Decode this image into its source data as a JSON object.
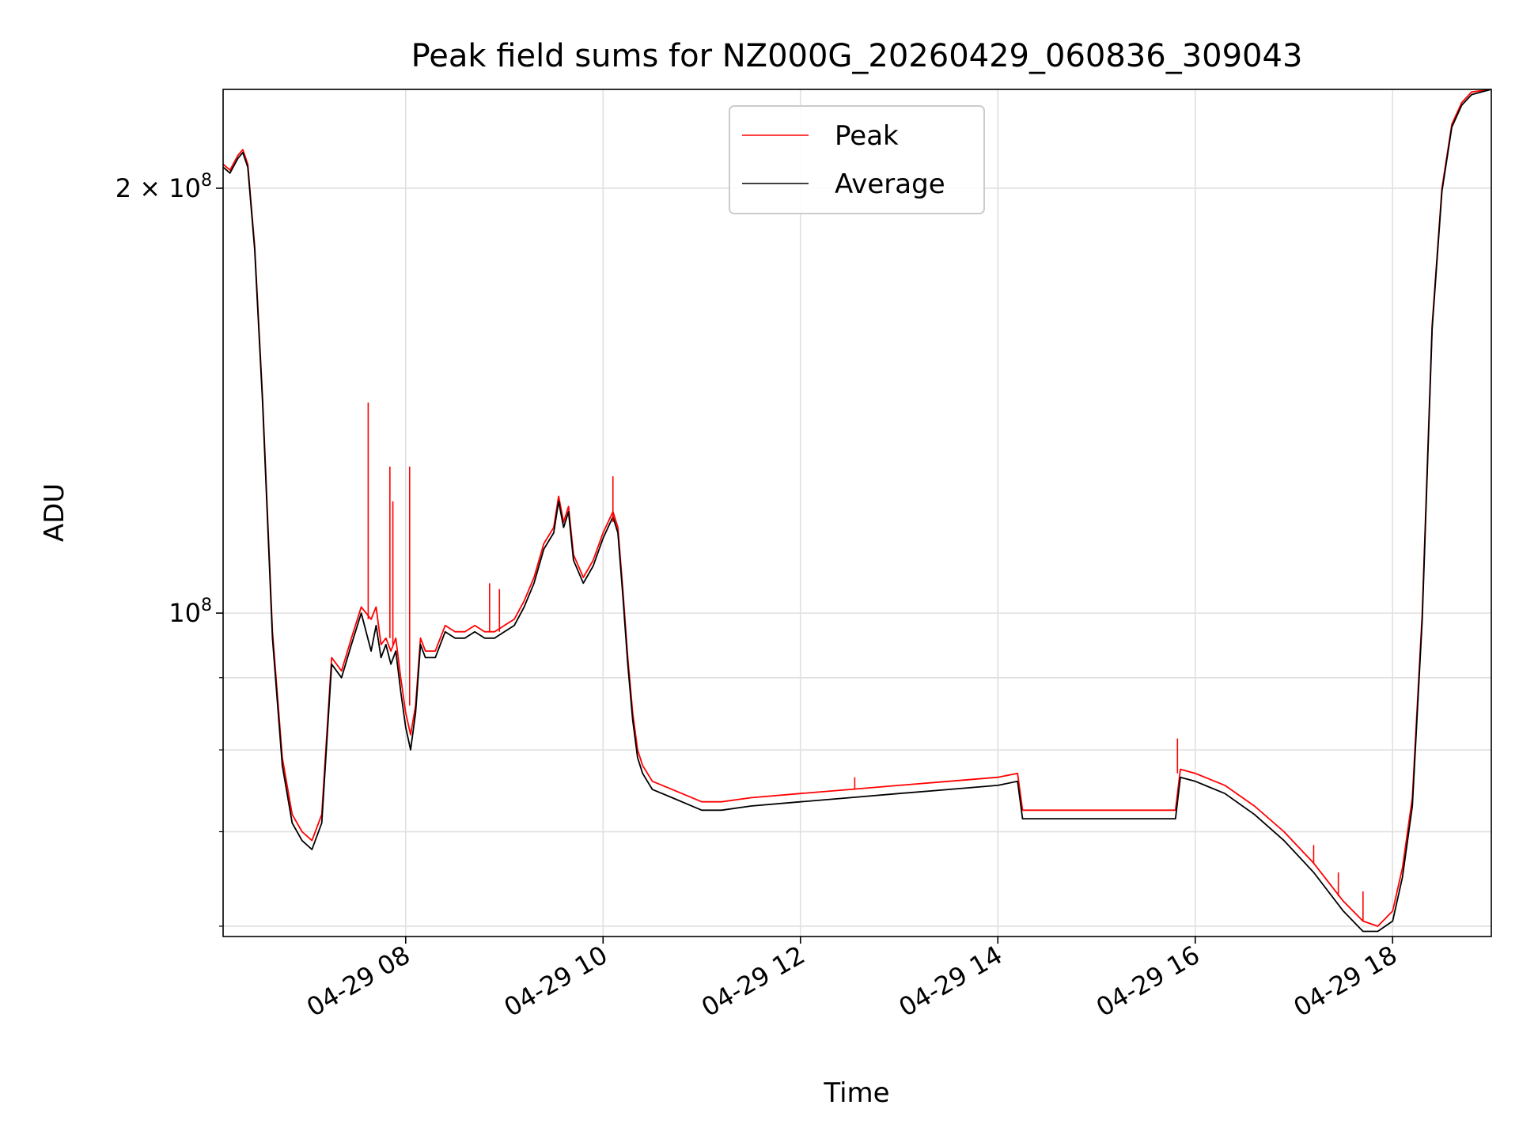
{
  "chart_data": {
    "type": "line",
    "title": "Peak field sums for NZ000G_20260429_060836_309043",
    "xlabel": "Time",
    "ylabel": "ADU",
    "x_unit": "hours on 2026-04-29",
    "xlim": [
      6.15,
      19.0
    ],
    "ylim": [
      59000000,
      235000000
    ],
    "y_scale": "log",
    "grid": true,
    "legend_position": "top-center",
    "x_ticks": [
      {
        "value": 8,
        "label": "04-29 08"
      },
      {
        "value": 10,
        "label": "04-29 10"
      },
      {
        "value": 12,
        "label": "04-29 12"
      },
      {
        "value": 14,
        "label": "04-29 14"
      },
      {
        "value": 16,
        "label": "04-29 16"
      },
      {
        "value": 18,
        "label": "04-29 18"
      }
    ],
    "y_major_ticks": [
      {
        "value": 100000000,
        "base": "10",
        "exp": "8"
      },
      {
        "value": 200000000,
        "base": "2 × 10",
        "exp": "8"
      }
    ],
    "y_minor_ticks": [
      60000000,
      70000000,
      80000000,
      90000000
    ],
    "x": [
      6.15,
      6.22,
      6.3,
      6.35,
      6.4,
      6.47,
      6.55,
      6.65,
      6.75,
      6.85,
      6.95,
      7.05,
      7.15,
      7.25,
      7.35,
      7.45,
      7.55,
      7.65,
      7.7,
      7.75,
      7.8,
      7.85,
      7.9,
      7.95,
      8.0,
      8.05,
      8.1,
      8.15,
      8.2,
      8.3,
      8.4,
      8.5,
      8.6,
      8.7,
      8.8,
      8.9,
      9.0,
      9.1,
      9.2,
      9.3,
      9.4,
      9.5,
      9.55,
      9.6,
      9.65,
      9.7,
      9.8,
      9.9,
      10.0,
      10.1,
      10.15,
      10.2,
      10.25,
      10.3,
      10.35,
      10.4,
      10.5,
      10.7,
      11.0,
      11.2,
      11.5,
      12.0,
      12.5,
      13.0,
      13.5,
      14.0,
      14.2,
      14.25,
      14.5,
      15.0,
      15.5,
      15.8,
      15.85,
      16.0,
      16.3,
      16.6,
      16.9,
      17.2,
      17.5,
      17.7,
      17.85,
      18.0,
      18.1,
      18.2,
      18.3,
      18.4,
      18.5,
      18.6,
      18.7,
      18.8,
      19.0
    ],
    "series": [
      {
        "name": "Peak",
        "color": "#ff0000",
        "values": [
          208000000,
          206000000,
          211000000,
          213000000,
          208000000,
          182000000,
          142000000,
          97000000,
          79000000,
          72000000,
          70000000,
          69000000,
          72000000,
          93000000,
          91000000,
          96000000,
          101000000,
          99000000,
          101000000,
          95000000,
          96000000,
          94000000,
          96000000,
          90000000,
          85000000,
          82000000,
          86000000,
          96000000,
          94000000,
          94000000,
          98000000,
          97000000,
          97000000,
          98000000,
          97000000,
          97000000,
          98000000,
          99000000,
          102000000,
          106000000,
          112000000,
          115000000,
          121000000,
          116000000,
          119000000,
          110000000,
          106000000,
          109000000,
          114000000,
          118000000,
          115000000,
          104000000,
          93000000,
          85000000,
          80000000,
          78000000,
          76000000,
          75000000,
          73500000,
          73500000,
          74000000,
          74500000,
          75000000,
          75500000,
          76000000,
          76500000,
          77000000,
          72500000,
          72500000,
          72500000,
          72500000,
          72500000,
          77500000,
          77000000,
          75500000,
          73000000,
          70000000,
          66500000,
          62500000,
          60500000,
          60000000,
          61500000,
          66000000,
          74000000,
          100000000,
          160000000,
          200000000,
          222000000,
          230000000,
          234000000,
          235000000
        ]
      },
      {
        "name": "Average",
        "color": "#000000",
        "values": [
          207000000,
          205000000,
          210000000,
          212000000,
          207000000,
          181000000,
          141000000,
          96000000,
          78000000,
          71000000,
          69000000,
          68000000,
          71000000,
          92000000,
          90000000,
          95000000,
          100000000,
          94000000,
          98000000,
          93000000,
          95000000,
          92000000,
          94000000,
          88000000,
          83000000,
          80000000,
          85000000,
          95000000,
          93000000,
          93000000,
          97000000,
          96000000,
          96000000,
          97000000,
          96000000,
          96000000,
          97000000,
          98000000,
          101000000,
          105000000,
          111000000,
          114000000,
          120000000,
          115000000,
          118000000,
          109000000,
          105000000,
          108000000,
          113000000,
          117000000,
          114000000,
          103000000,
          92000000,
          84000000,
          79000000,
          77000000,
          75000000,
          74000000,
          72500000,
          72500000,
          73000000,
          73500000,
          74000000,
          74500000,
          75000000,
          75500000,
          76000000,
          71500000,
          71500000,
          71500000,
          71500000,
          71500000,
          76500000,
          76000000,
          74500000,
          72000000,
          69000000,
          65500000,
          61500000,
          59500000,
          59500000,
          60500000,
          65000000,
          73000000,
          99000000,
          159000000,
          199000000,
          221000000,
          229000000,
          233000000,
          235000000
        ]
      }
    ],
    "spikes": [
      {
        "x": 7.62,
        "base": 99000000,
        "top": 141000000
      },
      {
        "x": 7.84,
        "base": 96000000,
        "top": 127000000
      },
      {
        "x": 7.87,
        "base": 95000000,
        "top": 120000000
      },
      {
        "x": 8.04,
        "base": 86000000,
        "top": 127000000
      },
      {
        "x": 8.85,
        "base": 97000000,
        "top": 105000000
      },
      {
        "x": 8.95,
        "base": 97000000,
        "top": 104000000
      },
      {
        "x": 10.1,
        "base": 116000000,
        "top": 125000000
      },
      {
        "x": 12.55,
        "base": 75000000,
        "top": 76500000
      },
      {
        "x": 15.82,
        "base": 77000000,
        "top": 81500000
      },
      {
        "x": 17.2,
        "base": 66500000,
        "top": 68500000
      },
      {
        "x": 17.45,
        "base": 63000000,
        "top": 65500000
      },
      {
        "x": 17.7,
        "base": 60500000,
        "top": 63500000
      }
    ]
  },
  "legend": {
    "peak_label": "Peak",
    "average_label": "Average"
  }
}
